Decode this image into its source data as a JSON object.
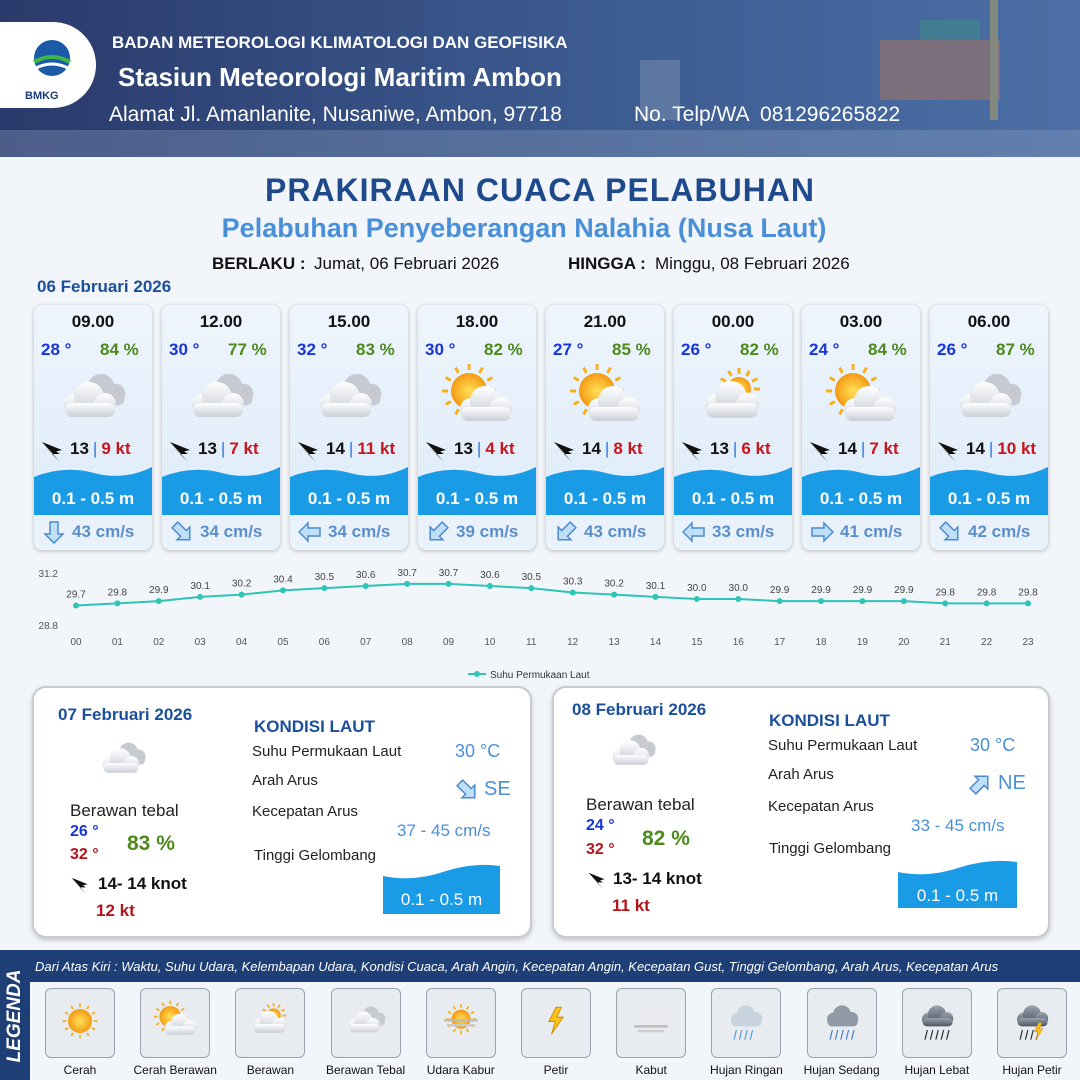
{
  "header": {
    "logo": "BMKG",
    "org": "BADAN METEOROLOGI KLIMATOLOGI DAN GEOFISIKA",
    "station": "Stasiun Meteorologi Maritim Ambon",
    "address": "Alamat Jl. Amanlanite, Nusaniwe, Ambon, 97718",
    "phone": "No. Telp/WA  081296265822"
  },
  "title": "PRAKIRAAN CUACA PELABUHAN",
  "subtitle": "Pelabuhan Penyeberangan Nalahia (Nusa Laut)",
  "valid_from_label": "BERLAKU :",
  "valid_from": "Jumat, 06 Februari 2026",
  "valid_to_label": "HINGGA :",
  "valid_to": "Minggu, 08 Februari 2026",
  "day1_date": "06 Februari 2026",
  "forecasts": [
    {
      "time": "09.00",
      "temp": "28 °",
      "humidity": "84 %",
      "wind": "13",
      "gust": "9 kt",
      "wave": "0.1 - 0.5 m",
      "current": "43 cm/s"
    },
    {
      "time": "12.00",
      "temp": "30 °",
      "humidity": "77 %",
      "wind": "13",
      "gust": "7 kt",
      "wave": "0.1 - 0.5 m",
      "current": "34 cm/s"
    },
    {
      "time": "15.00",
      "temp": "32 °",
      "humidity": "83 %",
      "wind": "14",
      "gust": "11 kt",
      "wave": "0.1 - 0.5 m",
      "current": "34 cm/s"
    },
    {
      "time": "18.00",
      "temp": "30 °",
      "humidity": "82 %",
      "wind": "13",
      "gust": "4 kt",
      "wave": "0.1 - 0.5 m",
      "current": "39 cm/s"
    },
    {
      "time": "21.00",
      "temp": "27 °",
      "humidity": "85 %",
      "wind": "14",
      "gust": "8 kt",
      "wave": "0.1 - 0.5 m",
      "current": "43 cm/s"
    },
    {
      "time": "00.00",
      "temp": "26 °",
      "humidity": "82 %",
      "wind": "13",
      "gust": "6 kt",
      "wave": "0.1 - 0.5 m",
      "current": "33 cm/s"
    },
    {
      "time": "03.00",
      "temp": "24 °",
      "humidity": "84 %",
      "wind": "14",
      "gust": "7 kt",
      "wave": "0.1 - 0.5 m",
      "current": "41 cm/s"
    },
    {
      "time": "06.00",
      "temp": "26 °",
      "humidity": "87 %",
      "wind": "14",
      "gust": "10 kt",
      "wave": "0.1 - 0.5 m",
      "current": "42 cm/s"
    }
  ],
  "chart_data": {
    "type": "line",
    "categories": [
      "00",
      "01",
      "02",
      "03",
      "04",
      "05",
      "06",
      "07",
      "08",
      "09",
      "10",
      "11",
      "12",
      "13",
      "14",
      "15",
      "16",
      "17",
      "18",
      "19",
      "20",
      "21",
      "22",
      "23"
    ],
    "series": [
      {
        "name": "Suhu Permukaan Laut",
        "color": "#2ec4b6",
        "values": [
          29.7,
          29.8,
          29.9,
          30.1,
          30.2,
          30.4,
          30.5,
          30.6,
          30.7,
          30.7,
          30.6,
          30.5,
          30.3,
          30.2,
          30.1,
          30.0,
          30.0,
          29.9,
          29.9,
          29.9,
          29.9,
          29.8,
          29.8,
          29.8
        ],
        "value_labels": [
          "29.7",
          "29.8",
          "29.9",
          "30.1",
          "30.2",
          "30.4",
          "30.5",
          "30.6",
          "30.7",
          "30.7",
          "30.6",
          "30.5",
          "30.3",
          "30.2",
          "30.1",
          "30.0",
          "30.0",
          "29.9",
          "29.9",
          "29.9",
          "29.9",
          "29.8",
          "29.8",
          "29.8"
        ]
      }
    ],
    "ylim": [
      28.8,
      31.2
    ],
    "yticks": [
      28.8,
      31.2
    ],
    "legend": "bottom"
  },
  "days": [
    {
      "date": "07 Februari 2026",
      "condition": "Berawan tebal",
      "temp_min": "26 °",
      "temp_max": "32 °",
      "humidity": "83 %",
      "wind": "14- 14 knot",
      "gust": "12 kt",
      "sea_title": "KONDISI LAUT",
      "sst_label": "Suhu Permukaan Laut",
      "sst": "30 °C",
      "dir_label": "Arah Arus",
      "dir": "SE",
      "speed_label": "Kecepatan Arus",
      "speed": "37 - 45 cm/s",
      "wave_label": "Tinggi Gelombang",
      "wave": "0.1 - 0.5 m"
    },
    {
      "date": "08 Februari 2026",
      "condition": "Berawan tebal",
      "temp_min": "24 °",
      "temp_max": "32 °",
      "humidity": "82 %",
      "wind": "13- 14 knot",
      "gust": "11 kt",
      "sea_title": "KONDISI LAUT",
      "sst_label": "Suhu Permukaan Laut",
      "sst": "30 °C",
      "dir_label": "Arah Arus",
      "dir": "NE",
      "speed_label": "Kecepatan Arus",
      "speed": "33 - 45 cm/s",
      "wave_label": "Tinggi Gelombang",
      "wave": "0.1 - 0.5 m"
    }
  ],
  "legend": {
    "title": "LEGENDA",
    "description": "Dari Atas Kiri : Waktu, Suhu Udara, Kelembapan Udara, Kondisi Cuaca, Arah Angin, Kecepatan Angin, Kecepatan Gust, Tinggi Gelombang, Arah Arus, Kecepatan Arus",
    "items": [
      "Cerah",
      "Cerah Berawan",
      "Berawan",
      "Berawan Tebal",
      "Udara Kabur",
      "Petir",
      "Kabut",
      "Hujan Ringan",
      "Hujan Sedang",
      "Hujan Lebat",
      "Hujan Petir"
    ]
  }
}
